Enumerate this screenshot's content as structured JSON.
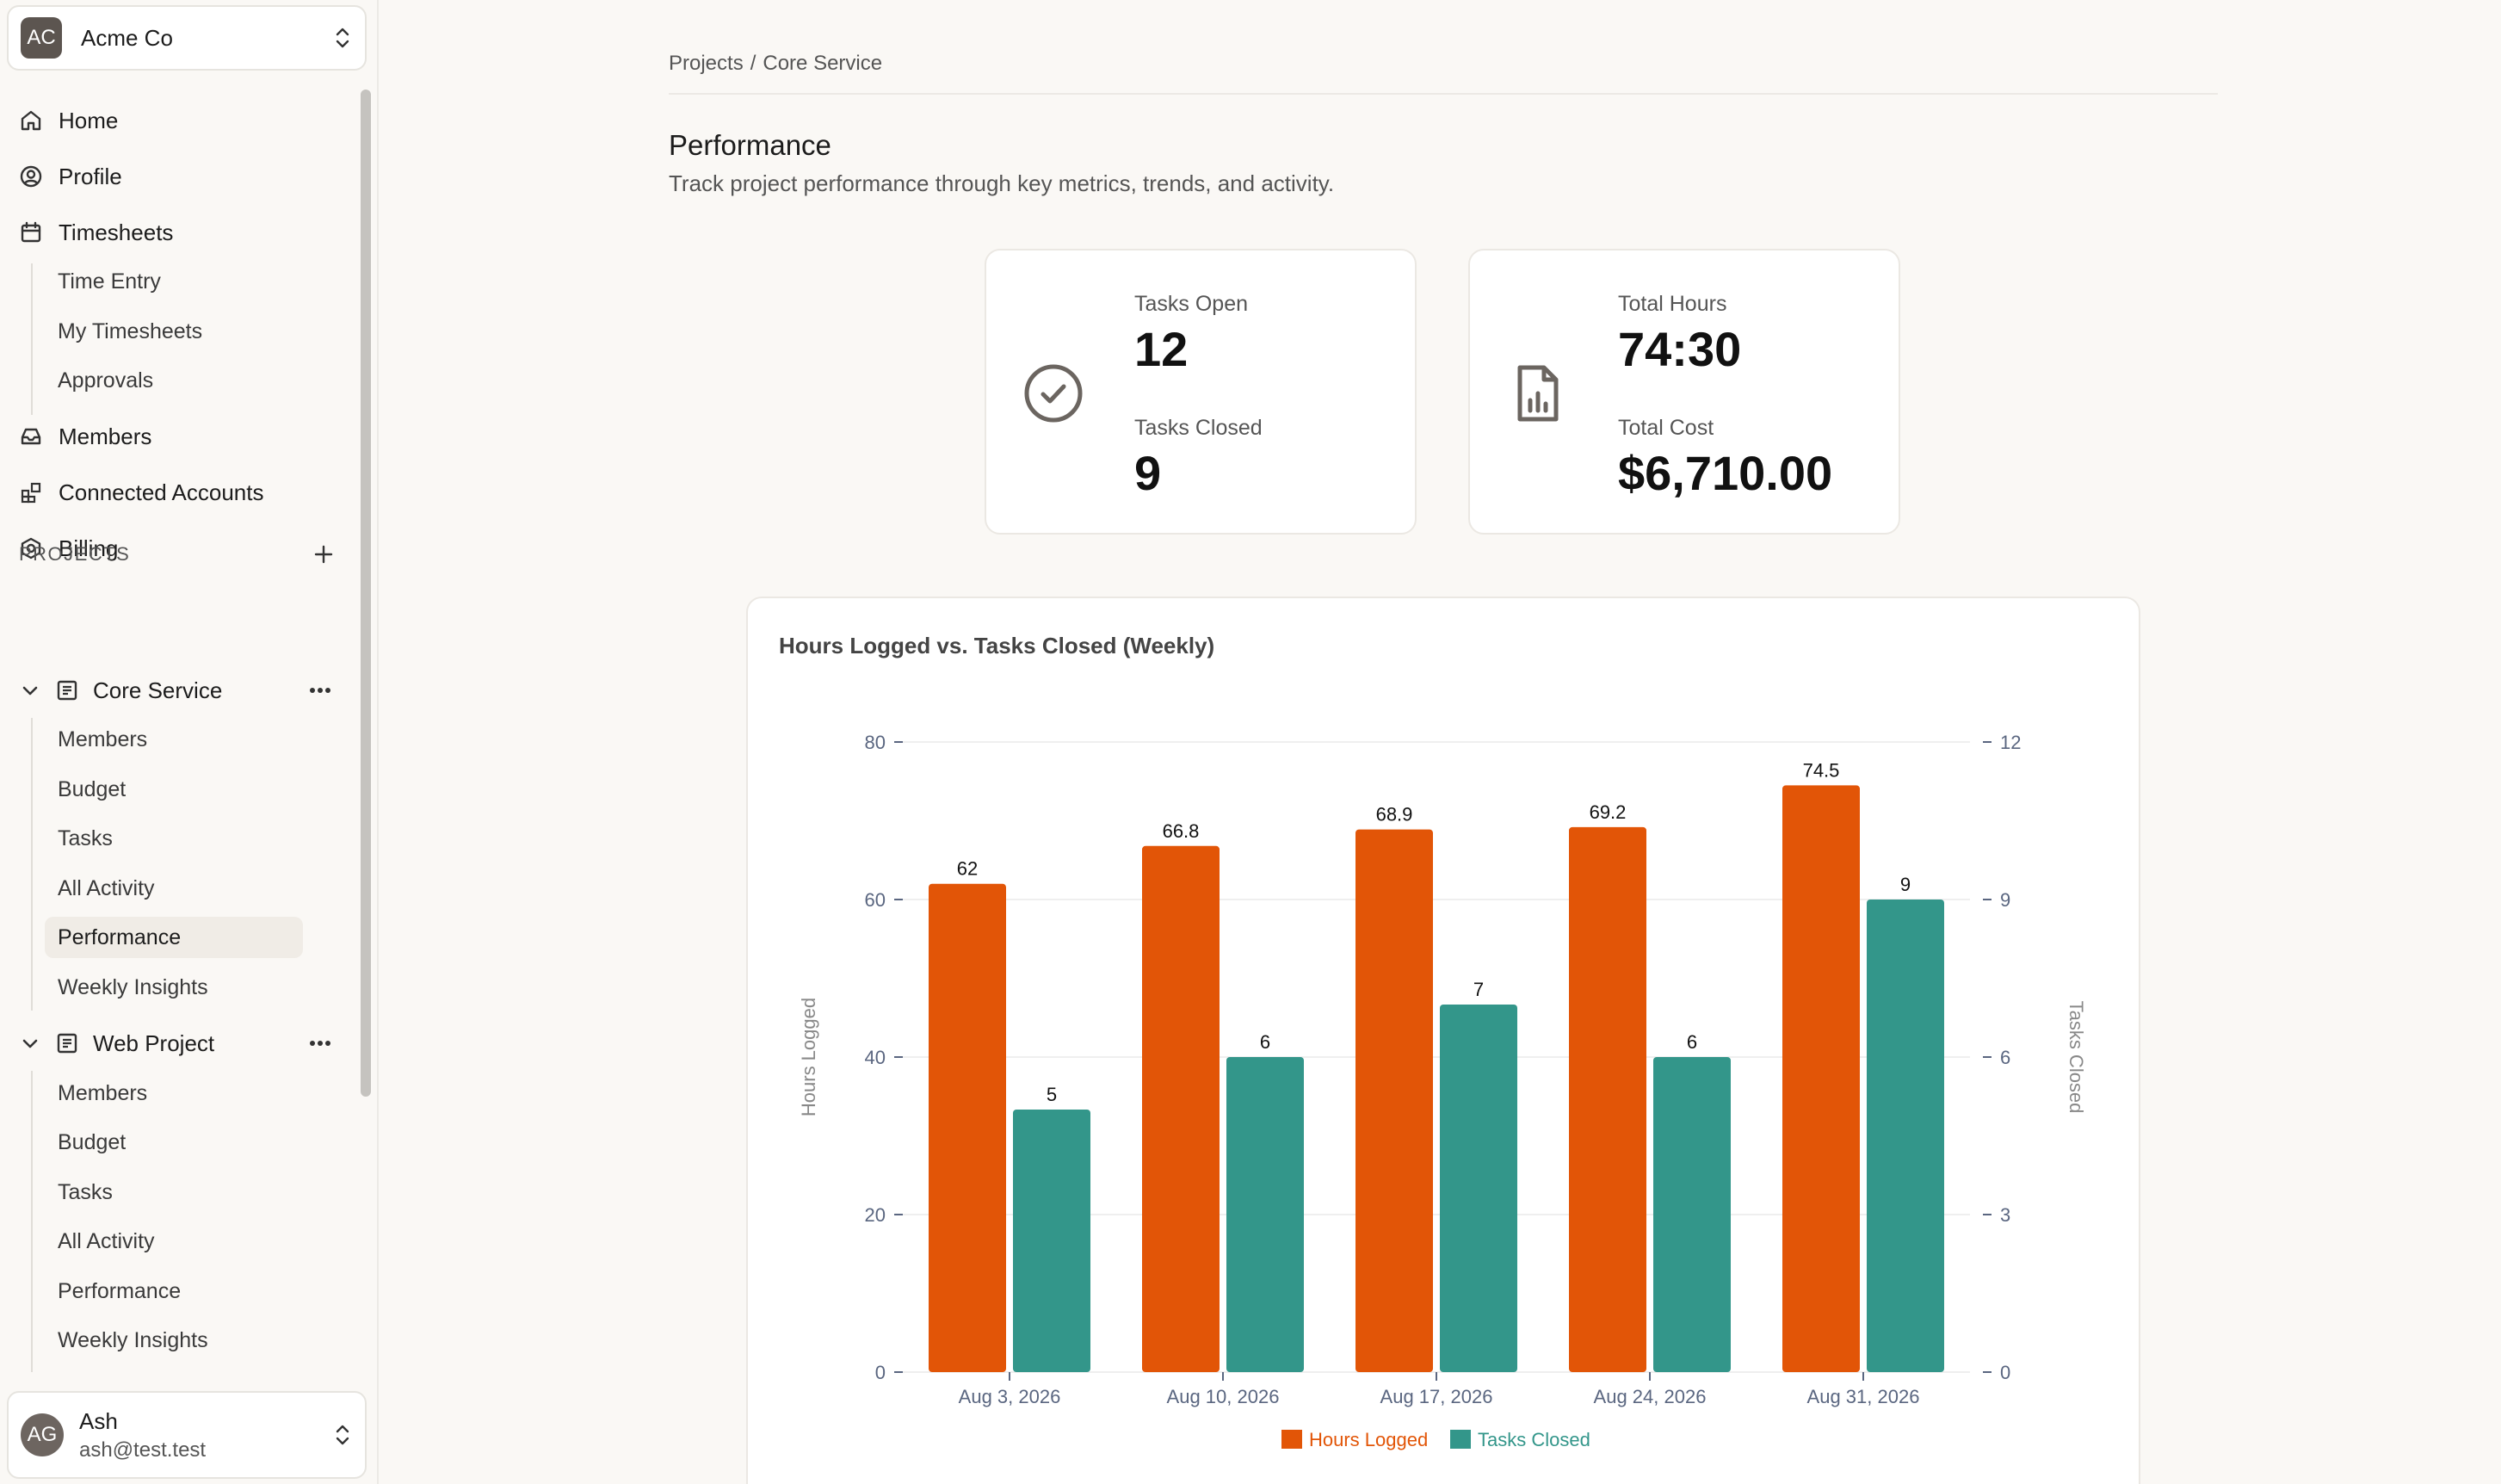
{
  "org": {
    "initials": "AC",
    "name": "Acme Co"
  },
  "nav": {
    "home": "Home",
    "profile": "Profile",
    "timesheets": "Timesheets",
    "time_entry": "Time Entry",
    "my_timesheets": "My Timesheets",
    "approvals": "Approvals",
    "members": "Members",
    "connected_accounts": "Connected Accounts",
    "billing": "Billing"
  },
  "projects_header": "PROJECTS",
  "projects": [
    {
      "name": "Core Service",
      "items": [
        "Members",
        "Budget",
        "Tasks",
        "All Activity",
        "Performance",
        "Weekly Insights"
      ],
      "active": "Performance"
    },
    {
      "name": "Web Project",
      "items": [
        "Members",
        "Budget",
        "Tasks",
        "All Activity",
        "Performance",
        "Weekly Insights"
      ]
    }
  ],
  "user": {
    "initials": "AG",
    "name": "Ash",
    "email": "ash@test.test"
  },
  "breadcrumb": {
    "root": "Projects",
    "sep": "/",
    "current": "Core Service"
  },
  "page": {
    "title": "Performance",
    "subtitle": "Track project performance through key metrics, trends, and activity."
  },
  "stats": {
    "tasks_open_label": "Tasks Open",
    "tasks_open": "12",
    "tasks_closed_label": "Tasks Closed",
    "tasks_closed": "9",
    "total_hours_label": "Total Hours",
    "total_hours": "74:30",
    "total_cost_label": "Total Cost",
    "total_cost": "$6,710.00"
  },
  "colors": {
    "hours": "#e25507",
    "tasks": "#33968a",
    "axis_text": "#5a6680"
  },
  "chart_data": {
    "type": "bar",
    "title": "Hours Logged vs. Tasks Closed (Weekly)",
    "categories": [
      "Aug 3, 2026",
      "Aug 10, 2026",
      "Aug 17, 2026",
      "Aug 24, 2026",
      "Aug 31, 2026"
    ],
    "series": [
      {
        "name": "Hours Logged",
        "axis": "left",
        "values": [
          62,
          66.8,
          68.9,
          69.2,
          74.5
        ]
      },
      {
        "name": "Tasks Closed",
        "axis": "right",
        "values": [
          5,
          6,
          7,
          6,
          9
        ]
      }
    ],
    "ylabel": "Hours Logged",
    "y2label": "Tasks Closed",
    "ylim": [
      0,
      80
    ],
    "y2lim": [
      0,
      12
    ],
    "yticks": [
      0,
      20,
      40,
      60,
      80
    ],
    "y2ticks": [
      0,
      3,
      6,
      9,
      12
    ],
    "legend": "bottom-center",
    "grid": true
  }
}
